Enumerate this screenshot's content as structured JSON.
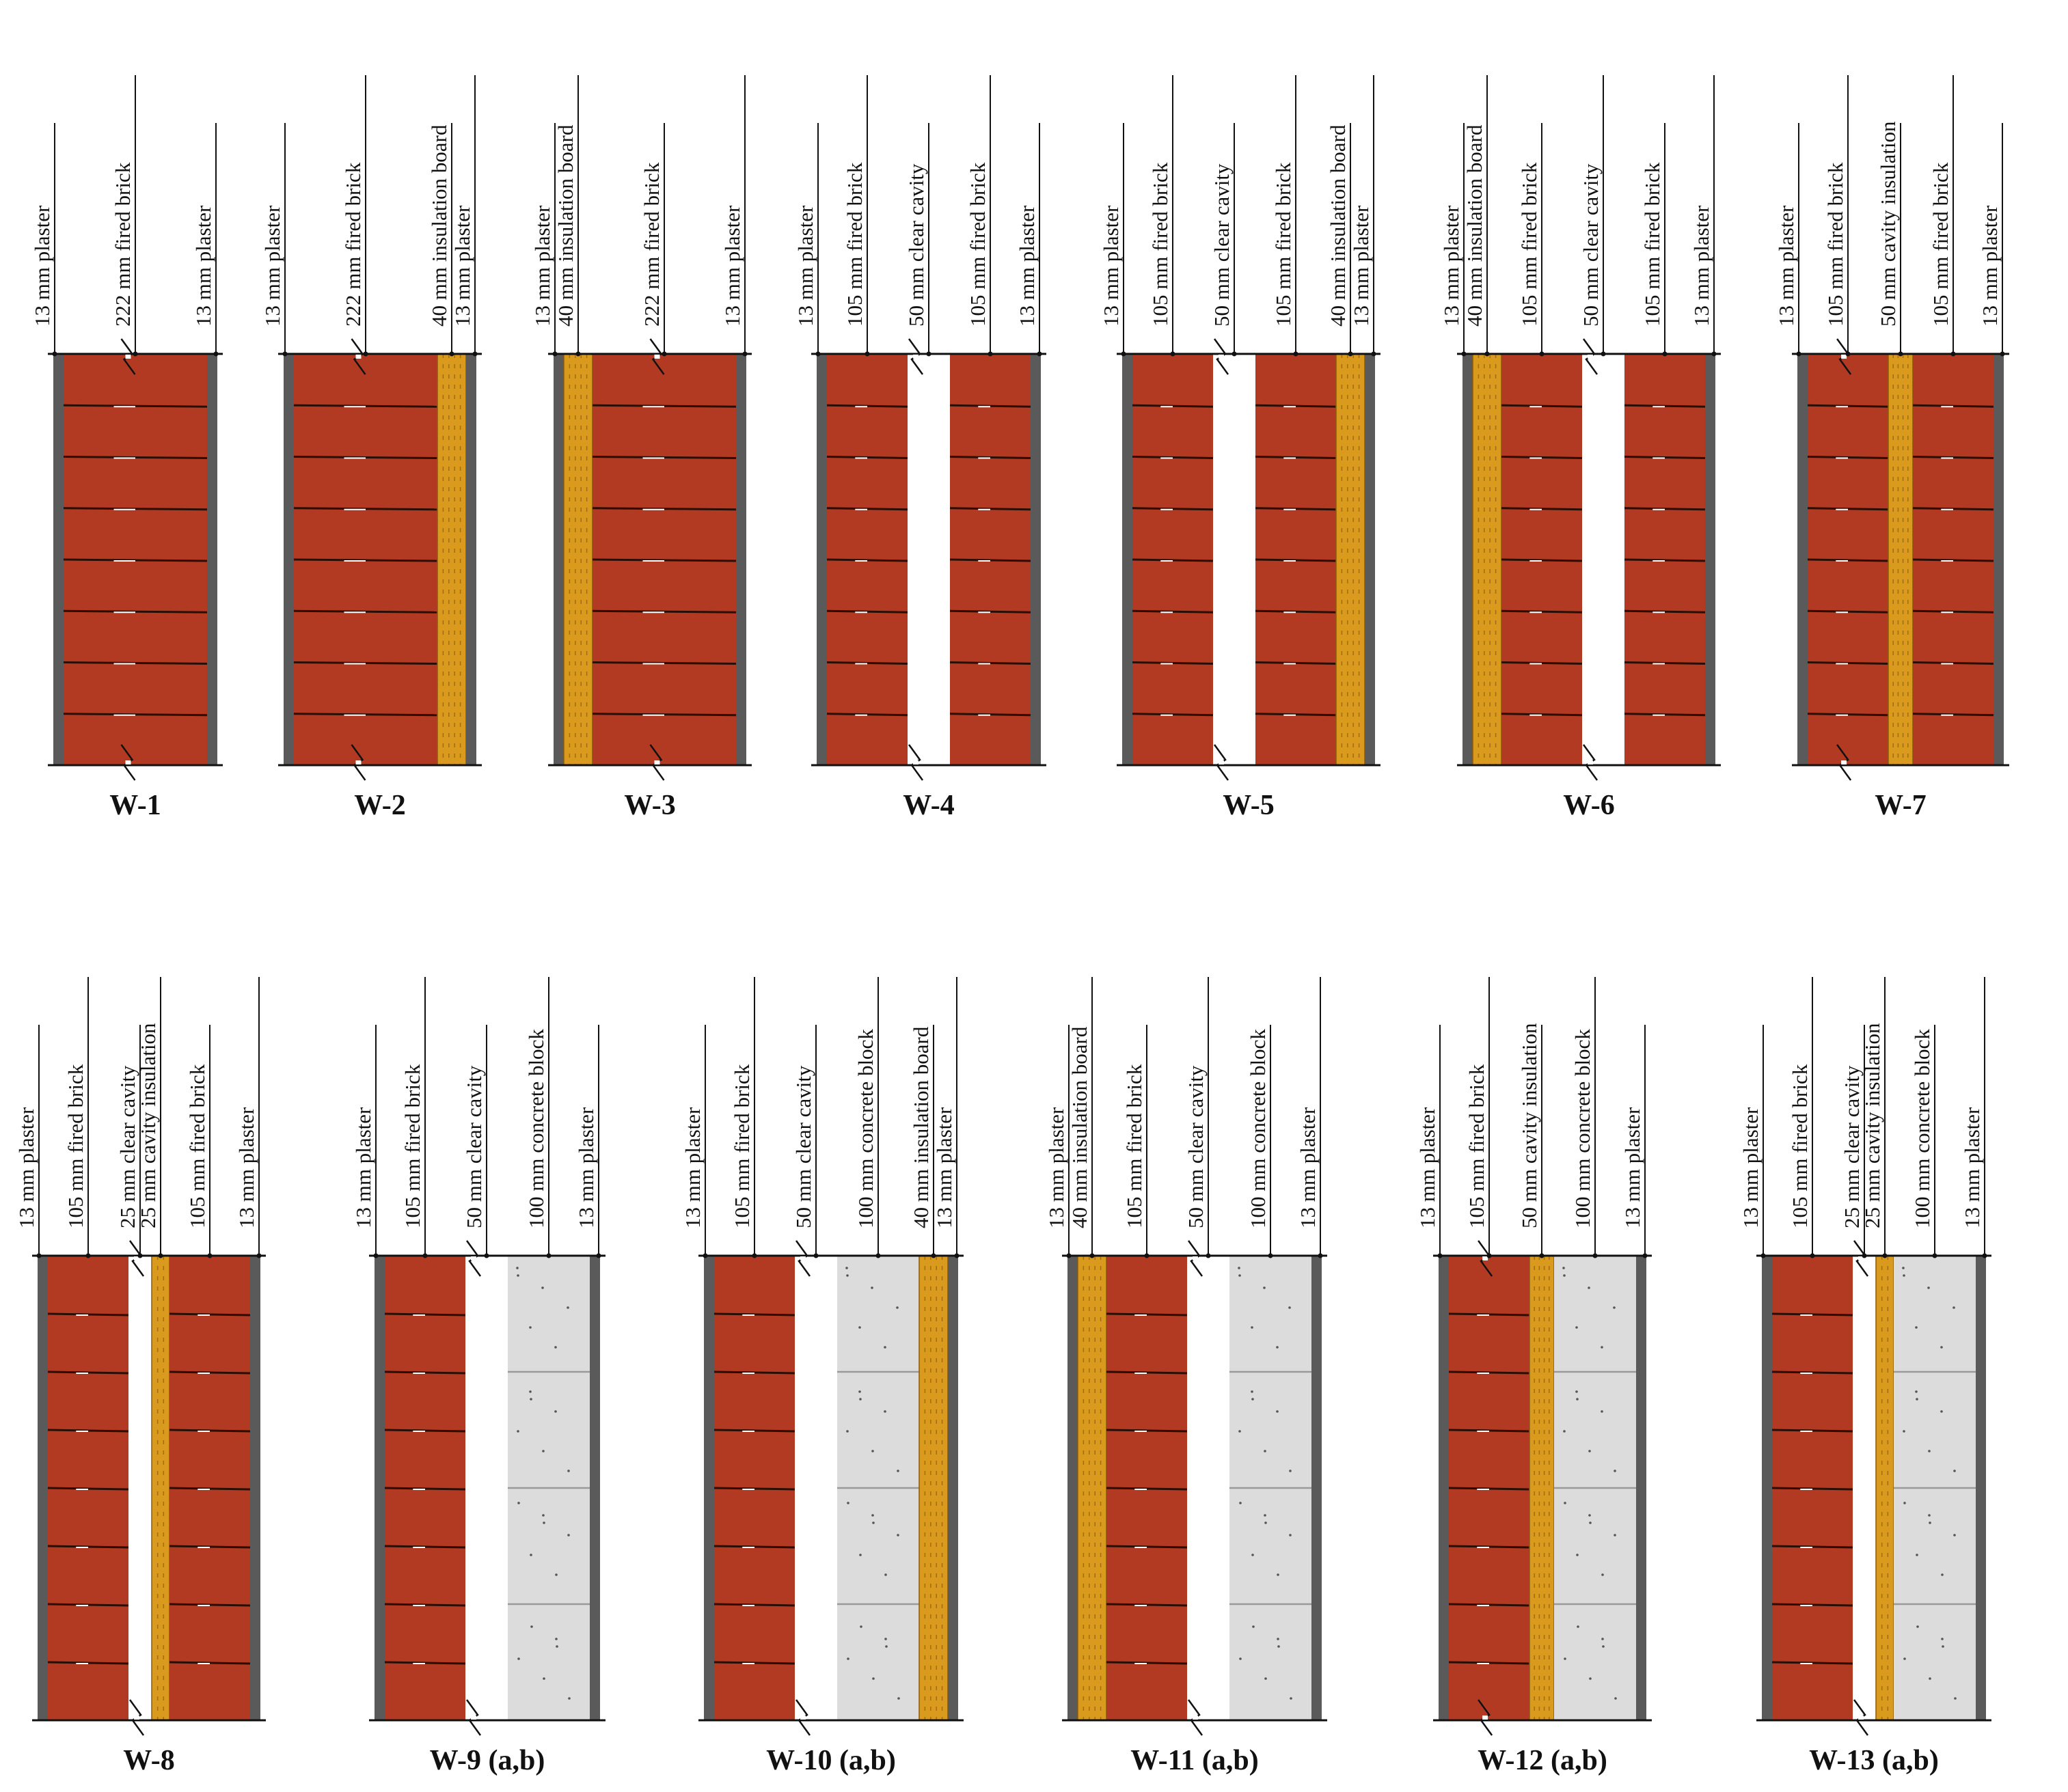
{
  "figure": {
    "rows": [
      {
        "walls": [
          {
            "title": "W-1",
            "layers": [
              {
                "type": "plaster",
                "label": "13 mm plaster"
              },
              {
                "type": "brick",
                "label": "222 mm fired brick"
              },
              {
                "type": "plaster",
                "label": "13 mm plaster"
              }
            ]
          },
          {
            "title": "W-2",
            "layers": [
              {
                "type": "plaster",
                "label": "13 mm plaster"
              },
              {
                "type": "brick",
                "label": "222 mm fired brick"
              },
              {
                "type": "board",
                "label": "40 mm insulation board"
              },
              {
                "type": "plaster",
                "label": "13 mm plaster"
              }
            ]
          },
          {
            "title": "W-3",
            "layers": [
              {
                "type": "plaster",
                "label": "13 mm plaster"
              },
              {
                "type": "board",
                "label": "40 mm insulation board"
              },
              {
                "type": "brick",
                "label": "222 mm fired brick"
              },
              {
                "type": "plaster",
                "label": "13 mm plaster"
              }
            ]
          },
          {
            "title": "W-4",
            "layers": [
              {
                "type": "plaster",
                "label": "13 mm plaster"
              },
              {
                "type": "brick",
                "label": "105 mm fired brick"
              },
              {
                "type": "cavity",
                "label": "50 mm clear cavity"
              },
              {
                "type": "brick",
                "label": "105 mm fired brick"
              },
              {
                "type": "plaster",
                "label": "13 mm plaster"
              }
            ]
          },
          {
            "title": "W-5",
            "layers": [
              {
                "type": "plaster",
                "label": "13 mm plaster"
              },
              {
                "type": "brick",
                "label": "105 mm fired brick"
              },
              {
                "type": "cavity",
                "label": "50 mm clear cavity"
              },
              {
                "type": "brick",
                "label": "105 mm fired brick"
              },
              {
                "type": "board",
                "label": "40 mm insulation board"
              },
              {
                "type": "plaster",
                "label": "13 mm plaster"
              }
            ]
          },
          {
            "title": "W-6",
            "layers": [
              {
                "type": "plaster",
                "label": "13 mm plaster"
              },
              {
                "type": "board",
                "label": "40 mm insulation board"
              },
              {
                "type": "brick",
                "label": "105 mm fired brick"
              },
              {
                "type": "cavity",
                "label": "50 mm clear cavity"
              },
              {
                "type": "brick",
                "label": "105 mm fired brick"
              },
              {
                "type": "plaster",
                "label": "13 mm plaster"
              }
            ]
          },
          {
            "title": "W-7",
            "layers": [
              {
                "type": "plaster",
                "label": "13 mm plaster"
              },
              {
                "type": "brick",
                "label": "105 mm fired brick"
              },
              {
                "type": "cavins",
                "label": "50 mm cavity insulation"
              },
              {
                "type": "brick",
                "label": "105 mm fired brick"
              },
              {
                "type": "plaster",
                "label": "13 mm plaster"
              }
            ]
          }
        ]
      },
      {
        "walls": [
          {
            "title": "W-8",
            "layers": [
              {
                "type": "plaster",
                "label": "13 mm plaster"
              },
              {
                "type": "brick",
                "label": "105 mm fired brick"
              },
              {
                "type": "cavity",
                "label": "25 mm clear cavity"
              },
              {
                "type": "cavins",
                "label": "25 mm cavity insulation"
              },
              {
                "type": "brick",
                "label": "105 mm fired brick"
              },
              {
                "type": "plaster",
                "label": "13 mm plaster"
              }
            ]
          },
          {
            "title": "W-9 (a,b)",
            "layers": [
              {
                "type": "plaster",
                "label": "13 mm plaster"
              },
              {
                "type": "brick",
                "label": "105 mm fired brick"
              },
              {
                "type": "cavity",
                "label": "50 mm clear cavity"
              },
              {
                "type": "block",
                "label": "100 mm concrete block"
              },
              {
                "type": "plaster",
                "label": "13 mm plaster"
              }
            ]
          },
          {
            "title": "W-10 (a,b)",
            "layers": [
              {
                "type": "plaster",
                "label": "13 mm plaster"
              },
              {
                "type": "brick",
                "label": "105 mm fired brick"
              },
              {
                "type": "cavity",
                "label": "50 mm clear cavity"
              },
              {
                "type": "block",
                "label": "100 mm concrete block"
              },
              {
                "type": "board",
                "label": "40 mm insulation board"
              },
              {
                "type": "plaster",
                "label": "13 mm plaster"
              }
            ]
          },
          {
            "title": "W-11 (a,b)",
            "layers": [
              {
                "type": "plaster",
                "label": "13 mm plaster"
              },
              {
                "type": "board",
                "label": "40 mm insulation board"
              },
              {
                "type": "brick",
                "label": "105 mm fired brick"
              },
              {
                "type": "cavity",
                "label": "50 mm clear cavity"
              },
              {
                "type": "block",
                "label": "100 mm concrete block"
              },
              {
                "type": "plaster",
                "label": "13 mm plaster"
              }
            ]
          },
          {
            "title": "W-12 (a,b)",
            "layers": [
              {
                "type": "plaster",
                "label": "13 mm plaster"
              },
              {
                "type": "brick",
                "label": "105 mm fired brick"
              },
              {
                "type": "cavins",
                "label": "50 mm cavity insulation"
              },
              {
                "type": "block",
                "label": "100 mm concrete block"
              },
              {
                "type": "plaster",
                "label": "13 mm plaster"
              }
            ]
          },
          {
            "title": "W-13 (a,b)",
            "layers": [
              {
                "type": "plaster",
                "label": "13 mm plaster"
              },
              {
                "type": "brick",
                "label": "105 mm fired brick"
              },
              {
                "type": "cavity",
                "label": "25 mm clear cavity"
              },
              {
                "type": "cavins",
                "label": "25 mm cavity insulation"
              },
              {
                "type": "block",
                "label": "100 mm concrete block"
              },
              {
                "type": "plaster",
                "label": "13 mm plaster"
              }
            ]
          }
        ]
      }
    ],
    "colors": {
      "brick": "#b23a22",
      "mortar": "#2a0e06",
      "plaster": "#5a5a5a",
      "board": "#d99a1e",
      "board_fleck": "#8a5a0c",
      "block": "#dcdcdc",
      "block_joint": "#9a9a9a",
      "line": "#111111"
    }
  }
}
